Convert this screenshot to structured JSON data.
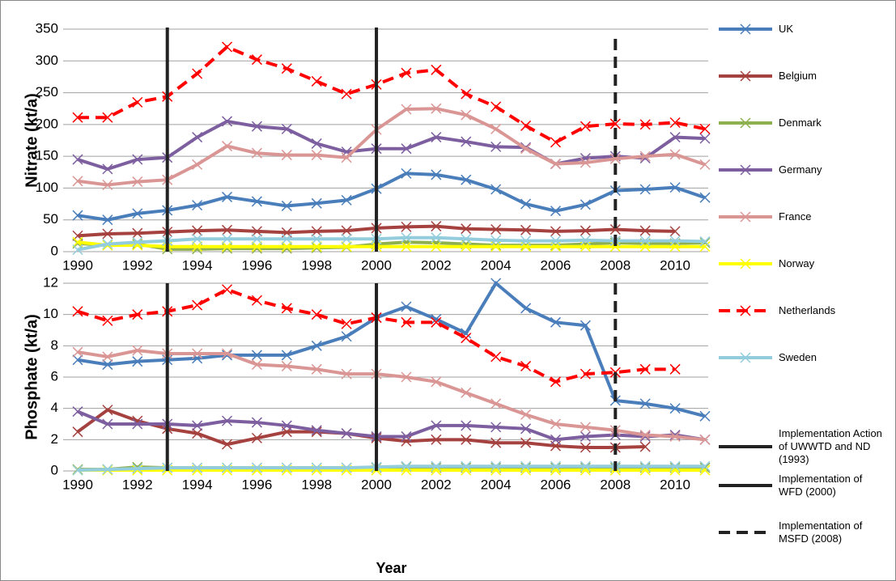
{
  "chart_data": [
    {
      "type": "line",
      "ylabel": "Nitrate (kt/a)",
      "x": [
        1990,
        1991,
        1992,
        1993,
        1994,
        1995,
        1996,
        1997,
        1998,
        1999,
        2000,
        2001,
        2002,
        2003,
        2004,
        2005,
        2006,
        2007,
        2008,
        2009,
        2010,
        2011
      ],
      "xlim": [
        1990,
        2011
      ],
      "xticks": [
        1990,
        1992,
        1994,
        1996,
        1998,
        2000,
        2002,
        2004,
        2006,
        2008,
        2010
      ],
      "ylim": [
        0,
        350
      ],
      "yticks": [
        0,
        50,
        100,
        150,
        200,
        250,
        300,
        350
      ],
      "grid": true,
      "series": [
        {
          "name": "UK",
          "color": "#4a7ebb",
          "dashed": false,
          "values": [
            57,
            50,
            60,
            65,
            73,
            86,
            79,
            72,
            76,
            81,
            99,
            123,
            121,
            113,
            98,
            75,
            64,
            74,
            96,
            98,
            101,
            85
          ]
        },
        {
          "name": "Belgium",
          "color": "#a5423f",
          "dashed": false,
          "values": [
            25,
            28,
            29,
            31,
            33,
            34,
            32,
            30,
            32,
            33,
            37,
            39,
            40,
            36,
            35,
            34,
            32,
            33,
            35,
            33,
            32,
            null
          ]
        },
        {
          "name": "Denmark",
          "color": "#8eb04f",
          "dashed": false,
          "values": [
            13,
            10,
            12,
            4,
            4,
            5,
            5,
            5,
            6,
            7,
            12,
            15,
            14,
            12,
            10,
            10,
            10,
            12,
            14,
            13,
            13,
            14
          ]
        },
        {
          "name": "Germany",
          "color": "#7d5fa0",
          "dashed": false,
          "values": [
            145,
            130,
            145,
            148,
            180,
            205,
            197,
            193,
            170,
            157,
            162,
            162,
            180,
            173,
            165,
            164,
            138,
            147,
            150,
            147,
            180,
            178
          ]
        },
        {
          "name": "France",
          "color": "#d99694",
          "dashed": false,
          "values": [
            111,
            105,
            110,
            113,
            137,
            166,
            155,
            152,
            152,
            148,
            192,
            224,
            225,
            215,
            193,
            162,
            138,
            140,
            146,
            150,
            153,
            137
          ]
        },
        {
          "name": "Norway",
          "color": "#ffff00",
          "dashed": false,
          "values": [
            15,
            10,
            10,
            8,
            8,
            8,
            8,
            8,
            8,
            8,
            8,
            8,
            8,
            8,
            8,
            8,
            8,
            8,
            8,
            8,
            8,
            8
          ]
        },
        {
          "name": "Netherlands",
          "color": "#ff0000",
          "dashed": true,
          "values": [
            211,
            211,
            235,
            244,
            280,
            322,
            302,
            288,
            268,
            248,
            263,
            281,
            286,
            248,
            228,
            198,
            172,
            197,
            201,
            200,
            203,
            193
          ]
        },
        {
          "name": "Sweden",
          "color": "#93cddd",
          "dashed": false,
          "values": [
            3,
            12,
            15,
            17,
            20,
            20,
            20,
            20,
            20,
            20,
            20,
            22,
            22,
            20,
            18,
            17,
            17,
            18,
            17,
            17,
            17,
            16
          ]
        }
      ],
      "reference_lines": [
        {
          "x": 1993,
          "label": "Implementation Action of UWWTD and ND (1993)",
          "color": "#222222",
          "dashed": false
        },
        {
          "x": 2000,
          "label": "Implementation of WFD (2000)",
          "color": "#222222",
          "dashed": false
        },
        {
          "x": 2008,
          "label": "Implementation of MSFD (2008)",
          "color": "#222222",
          "dashed": true
        }
      ]
    },
    {
      "type": "line",
      "ylabel": "Phosphate (kt/a)",
      "xlabel": "Year",
      "x": [
        1990,
        1991,
        1992,
        1993,
        1994,
        1995,
        1996,
        1997,
        1998,
        1999,
        2000,
        2001,
        2002,
        2003,
        2004,
        2005,
        2006,
        2007,
        2008,
        2009,
        2010,
        2011
      ],
      "xlim": [
        1990,
        2011
      ],
      "xticks": [
        1990,
        1992,
        1994,
        1996,
        1998,
        2000,
        2002,
        2004,
        2006,
        2008,
        2010
      ],
      "ylim": [
        0,
        12
      ],
      "yticks": [
        0,
        2,
        4,
        6,
        8,
        10,
        12
      ],
      "grid": true,
      "series": [
        {
          "color": "#4a7ebb",
          "dashed": false,
          "values": [
            7.1,
            6.8,
            7.0,
            7.1,
            7.2,
            7.4,
            7.4,
            7.4,
            8.0,
            8.6,
            9.8,
            10.5,
            9.7,
            8.8,
            12.0,
            10.4,
            9.5,
            9.3,
            4.5,
            4.3,
            4.0,
            3.5
          ]
        },
        {
          "color": "#a5423f",
          "dashed": false,
          "values": [
            2.5,
            3.9,
            3.2,
            2.7,
            2.4,
            1.7,
            2.1,
            2.5,
            2.5,
            2.4,
            2.1,
            1.9,
            2.0,
            2.0,
            1.8,
            1.8,
            1.6,
            1.5,
            1.5,
            1.55,
            null,
            null
          ]
        },
        {
          "color": "#8eb04f",
          "dashed": false,
          "values": [
            0.1,
            0.1,
            0.25,
            0.2,
            0.2,
            0.2,
            0.2,
            0.2,
            0.2,
            0.2,
            0.2,
            0.25,
            0.2,
            0.2,
            0.2,
            0.2,
            0.2,
            0.2,
            0.2,
            0.2,
            0.2,
            0.2
          ]
        },
        {
          "color": "#7d5fa0",
          "dashed": false,
          "values": [
            3.8,
            3.0,
            3.0,
            3.0,
            2.9,
            3.2,
            3.1,
            2.9,
            2.6,
            2.4,
            2.2,
            2.2,
            2.9,
            2.9,
            2.8,
            2.7,
            2.0,
            2.2,
            2.3,
            2.2,
            2.3,
            2.0
          ]
        },
        {
          "color": "#d99694",
          "dashed": false,
          "values": [
            7.6,
            7.3,
            7.7,
            7.5,
            7.5,
            7.5,
            6.8,
            6.7,
            6.5,
            6.2,
            6.2,
            6.0,
            5.7,
            5.0,
            4.3,
            3.6,
            3.0,
            2.8,
            2.6,
            2.3,
            2.2,
            2.0
          ]
        },
        {
          "color": "#ffff00",
          "dashed": false,
          "values": [
            0.05,
            0.05,
            0.05,
            0.05,
            0.05,
            0.05,
            0.05,
            0.05,
            0.05,
            0.05,
            0.05,
            0.05,
            0.05,
            0.05,
            0.05,
            0.05,
            0.05,
            0.05,
            0.05,
            0.05,
            0.05,
            0.05
          ]
        },
        {
          "color": "#ff0000",
          "dashed": true,
          "values": [
            10.2,
            9.6,
            10.0,
            10.2,
            10.6,
            11.6,
            10.9,
            10.4,
            10.0,
            9.4,
            9.8,
            9.5,
            9.5,
            8.5,
            7.3,
            6.7,
            5.7,
            6.2,
            6.3,
            6.5,
            6.5,
            null
          ]
        },
        {
          "color": "#93cddd",
          "dashed": false,
          "values": [
            0.05,
            0.1,
            0.15,
            0.2,
            0.2,
            0.2,
            0.2,
            0.2,
            0.2,
            0.2,
            0.25,
            0.3,
            0.3,
            0.3,
            0.3,
            0.3,
            0.3,
            0.3,
            0.3,
            0.3,
            0.3,
            0.3
          ]
        }
      ]
    }
  ]
}
